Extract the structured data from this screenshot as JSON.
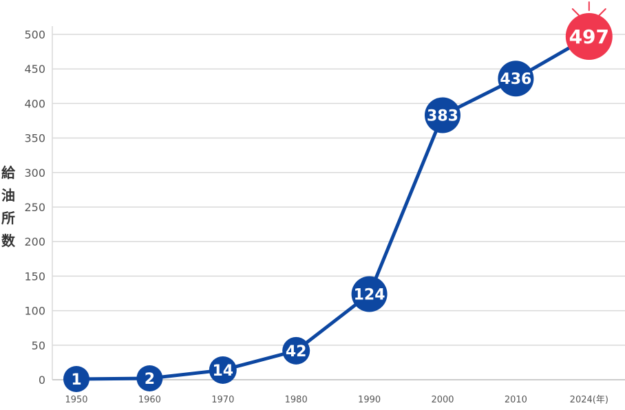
{
  "chart_data": {
    "type": "line",
    "x": [
      "1950",
      "1960",
      "1970",
      "1980",
      "1990",
      "2000",
      "2010",
      "2024"
    ],
    "x_tick_labels": [
      "1950",
      "1960",
      "1970",
      "1980",
      "1990",
      "2000",
      "2010",
      "2024(年)"
    ],
    "values": [
      1,
      2,
      14,
      42,
      124,
      383,
      436,
      497
    ],
    "data_labels": [
      "1",
      "2",
      "14",
      "42",
      "124",
      "383",
      "436",
      "497"
    ],
    "ylabel": "給油所数",
    "xlabel": "",
    "title": "",
    "ylim": [
      0,
      500
    ],
    "yticks": [
      "0",
      "50",
      "100",
      "150",
      "200",
      "250",
      "300",
      "350",
      "400",
      "450",
      "500"
    ],
    "grid": true,
    "colors": {
      "line": "#0d47a1",
      "marker": "#0d47a1",
      "highlight": "#f0384f",
      "grid": "#d9d9d9",
      "axis": "#bbbbbb"
    }
  }
}
